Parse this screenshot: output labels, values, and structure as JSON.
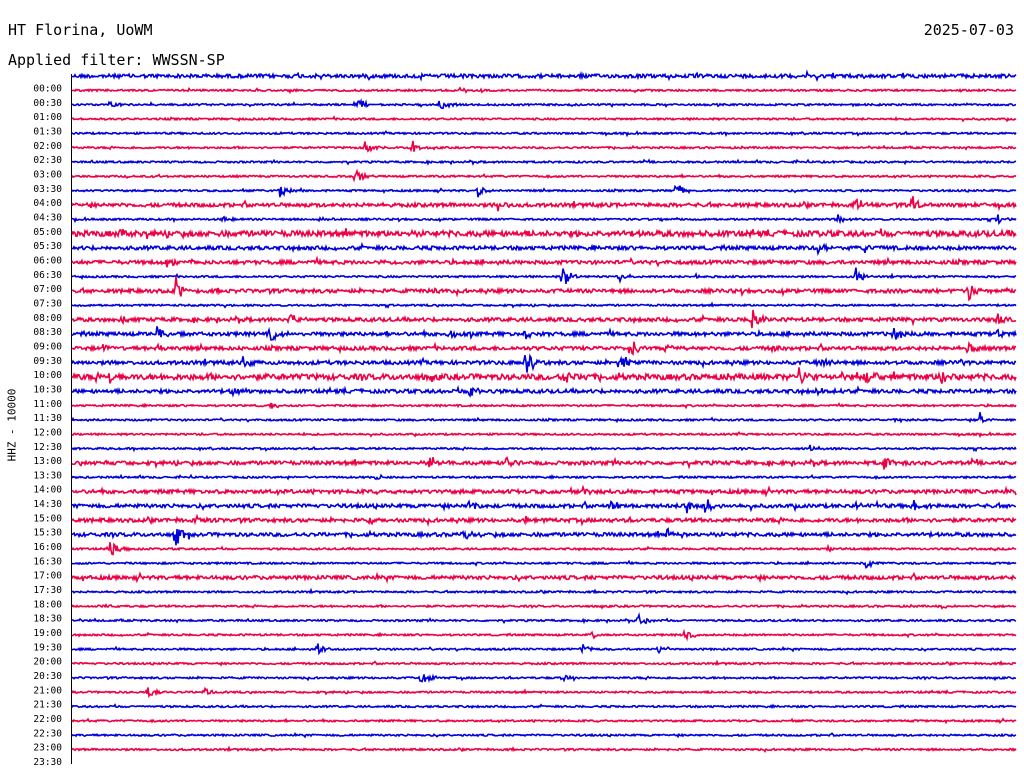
{
  "header": {
    "station": "HT Florina, UoWM",
    "date": "2025-07-03",
    "filter": "Applied filter: WWSSN-SP"
  },
  "ylabel": "HHZ - 10000",
  "colors": {
    "even_row": "#0000dd",
    "odd_row": "#ee0044",
    "text": "#000000"
  },
  "chart_data": {
    "type": "line",
    "title": "HT Florina, UoWM",
    "subtitle": "Applied filter: WWSSN-SP",
    "ylabel": "HHZ - 10000",
    "xlabel": "",
    "row_duration_minutes": 30,
    "row_labels": [
      "00:00",
      "00:30",
      "01:00",
      "01:30",
      "02:00",
      "02:30",
      "03:00",
      "03:30",
      "04:00",
      "04:30",
      "05:00",
      "05:30",
      "06:00",
      "06:30",
      "07:00",
      "07:30",
      "08:00",
      "08:30",
      "09:00",
      "09:30",
      "10:00",
      "10:30",
      "11:00",
      "11:30",
      "12:00",
      "12:30",
      "13:00",
      "13:30",
      "14:00",
      "14:30",
      "15:00",
      "15:30",
      "16:00",
      "16:30",
      "17:00",
      "17:30",
      "18:00",
      "18:30",
      "19:00",
      "19:30",
      "20:00",
      "20:30",
      "21:00",
      "21:30",
      "22:00",
      "22:30",
      "23:00",
      "23:30"
    ],
    "series_colors": [
      "#0000dd",
      "#ee0044"
    ],
    "noise_level": [
      2,
      1,
      1,
      1,
      1,
      1,
      1,
      1,
      1,
      2,
      1,
      3,
      2,
      2,
      1,
      2,
      1,
      2,
      2,
      2,
      2,
      3,
      2,
      1,
      1,
      1,
      1,
      2,
      1,
      2,
      2,
      2,
      2,
      1,
      1,
      2,
      1,
      1,
      1,
      1,
      1,
      1,
      1,
      1,
      1,
      1,
      1,
      1
    ],
    "events": [
      {
        "row": 1,
        "t": 0.41,
        "amp": 4
      },
      {
        "row": 2,
        "t": 0.04,
        "amp": 3
      },
      {
        "row": 2,
        "t": 0.3,
        "amp": 12
      },
      {
        "row": 2,
        "t": 0.39,
        "amp": 9
      },
      {
        "row": 5,
        "t": 0.31,
        "amp": 7
      },
      {
        "row": 5,
        "t": 0.36,
        "amp": 7
      },
      {
        "row": 7,
        "t": 0.3,
        "amp": 10
      },
      {
        "row": 8,
        "t": 0.22,
        "amp": 7
      },
      {
        "row": 8,
        "t": 0.43,
        "amp": 7
      },
      {
        "row": 8,
        "t": 0.64,
        "amp": 9
      },
      {
        "row": 9,
        "t": 0.45,
        "amp": 6
      },
      {
        "row": 9,
        "t": 0.83,
        "amp": 8
      },
      {
        "row": 9,
        "t": 0.89,
        "amp": 9
      },
      {
        "row": 10,
        "t": 0.16,
        "amp": 4
      },
      {
        "row": 10,
        "t": 0.26,
        "amp": 3
      },
      {
        "row": 10,
        "t": 0.81,
        "amp": 5
      },
      {
        "row": 10,
        "t": 0.98,
        "amp": 6
      },
      {
        "row": 11,
        "t": 0.05,
        "amp": 7
      },
      {
        "row": 12,
        "t": 0.79,
        "amp": 8
      },
      {
        "row": 12,
        "t": 0.84,
        "amp": 5
      },
      {
        "row": 13,
        "t": 0.1,
        "amp": 5
      },
      {
        "row": 13,
        "t": 0.33,
        "amp": 3
      },
      {
        "row": 14,
        "t": 0.52,
        "amp": 14
      },
      {
        "row": 14,
        "t": 0.58,
        "amp": 6
      },
      {
        "row": 14,
        "t": 0.66,
        "amp": 5
      },
      {
        "row": 14,
        "t": 0.83,
        "amp": 11
      },
      {
        "row": 15,
        "t": 0.11,
        "amp": 12
      },
      {
        "row": 15,
        "t": 0.38,
        "amp": 4
      },
      {
        "row": 15,
        "t": 0.95,
        "amp": 10
      },
      {
        "row": 17,
        "t": 0.05,
        "amp": 5
      },
      {
        "row": 17,
        "t": 0.23,
        "amp": 9
      },
      {
        "row": 17,
        "t": 0.72,
        "amp": 11
      },
      {
        "row": 17,
        "t": 0.89,
        "amp": 4
      },
      {
        "row": 17,
        "t": 0.98,
        "amp": 5
      },
      {
        "row": 18,
        "t": 0.09,
        "amp": 6
      },
      {
        "row": 18,
        "t": 0.21,
        "amp": 12
      },
      {
        "row": 18,
        "t": 0.4,
        "amp": 6
      },
      {
        "row": 18,
        "t": 0.48,
        "amp": 6
      },
      {
        "row": 18,
        "t": 0.87,
        "amp": 9
      },
      {
        "row": 18,
        "t": 0.98,
        "amp": 5
      },
      {
        "row": 19,
        "t": 0.03,
        "amp": 6
      },
      {
        "row": 19,
        "t": 0.09,
        "amp": 4
      },
      {
        "row": 19,
        "t": 0.59,
        "amp": 12
      },
      {
        "row": 19,
        "t": 0.63,
        "amp": 5
      },
      {
        "row": 19,
        "t": 0.74,
        "amp": 5
      },
      {
        "row": 19,
        "t": 0.95,
        "amp": 6
      },
      {
        "row": 20,
        "t": 0.18,
        "amp": 9
      },
      {
        "row": 20,
        "t": 0.48,
        "amp": 16
      },
      {
        "row": 20,
        "t": 0.58,
        "amp": 12
      },
      {
        "row": 20,
        "t": 0.79,
        "amp": 8
      },
      {
        "row": 20,
        "t": 0.94,
        "amp": 5
      },
      {
        "row": 21,
        "t": 0.04,
        "amp": 7
      },
      {
        "row": 21,
        "t": 0.52,
        "amp": 8
      },
      {
        "row": 21,
        "t": 0.77,
        "amp": 10
      },
      {
        "row": 21,
        "t": 0.84,
        "amp": 9
      },
      {
        "row": 21,
        "t": 0.92,
        "amp": 10
      },
      {
        "row": 22,
        "t": 0.17,
        "amp": 7
      },
      {
        "row": 22,
        "t": 0.42,
        "amp": 8
      },
      {
        "row": 22,
        "t": 0.79,
        "amp": 4
      },
      {
        "row": 23,
        "t": 0.21,
        "amp": 4
      },
      {
        "row": 24,
        "t": 0.87,
        "amp": 4
      },
      {
        "row": 24,
        "t": 0.96,
        "amp": 10
      },
      {
        "row": 26,
        "t": 0.78,
        "amp": 4
      },
      {
        "row": 27,
        "t": 0.38,
        "amp": 10
      },
      {
        "row": 27,
        "t": 0.46,
        "amp": 10
      },
      {
        "row": 27,
        "t": 0.86,
        "amp": 10
      },
      {
        "row": 28,
        "t": 0.32,
        "amp": 4
      },
      {
        "row": 29,
        "t": 0.54,
        "amp": 5
      },
      {
        "row": 30,
        "t": 0.42,
        "amp": 8
      },
      {
        "row": 30,
        "t": 0.57,
        "amp": 6
      },
      {
        "row": 30,
        "t": 0.65,
        "amp": 10
      },
      {
        "row": 30,
        "t": 0.67,
        "amp": 10
      },
      {
        "row": 30,
        "t": 0.83,
        "amp": 5
      },
      {
        "row": 30,
        "t": 0.89,
        "amp": 8
      },
      {
        "row": 31,
        "t": 0.13,
        "amp": 4
      },
      {
        "row": 31,
        "t": 0.31,
        "amp": 3
      },
      {
        "row": 31,
        "t": 0.48,
        "amp": 4
      },
      {
        "row": 32,
        "t": 0.11,
        "amp": 14
      },
      {
        "row": 32,
        "t": 0.41,
        "amp": 7
      },
      {
        "row": 32,
        "t": 0.63,
        "amp": 9
      },
      {
        "row": 33,
        "t": 0.04,
        "amp": 9
      },
      {
        "row": 33,
        "t": 0.8,
        "amp": 4
      },
      {
        "row": 34,
        "t": 0.84,
        "amp": 7
      },
      {
        "row": 37,
        "t": 0.03,
        "amp": 3
      },
      {
        "row": 37,
        "t": 0.92,
        "amp": 3
      },
      {
        "row": 38,
        "t": 0.6,
        "amp": 8
      },
      {
        "row": 39,
        "t": 0.55,
        "amp": 6
      },
      {
        "row": 39,
        "t": 0.65,
        "amp": 7
      },
      {
        "row": 40,
        "t": 0.26,
        "amp": 7
      },
      {
        "row": 40,
        "t": 0.54,
        "amp": 6
      },
      {
        "row": 40,
        "t": 0.62,
        "amp": 4
      },
      {
        "row": 42,
        "t": 0.37,
        "amp": 10
      },
      {
        "row": 42,
        "t": 0.52,
        "amp": 3
      },
      {
        "row": 43,
        "t": 0.08,
        "amp": 6
      },
      {
        "row": 43,
        "t": 0.14,
        "amp": 5
      }
    ]
  }
}
